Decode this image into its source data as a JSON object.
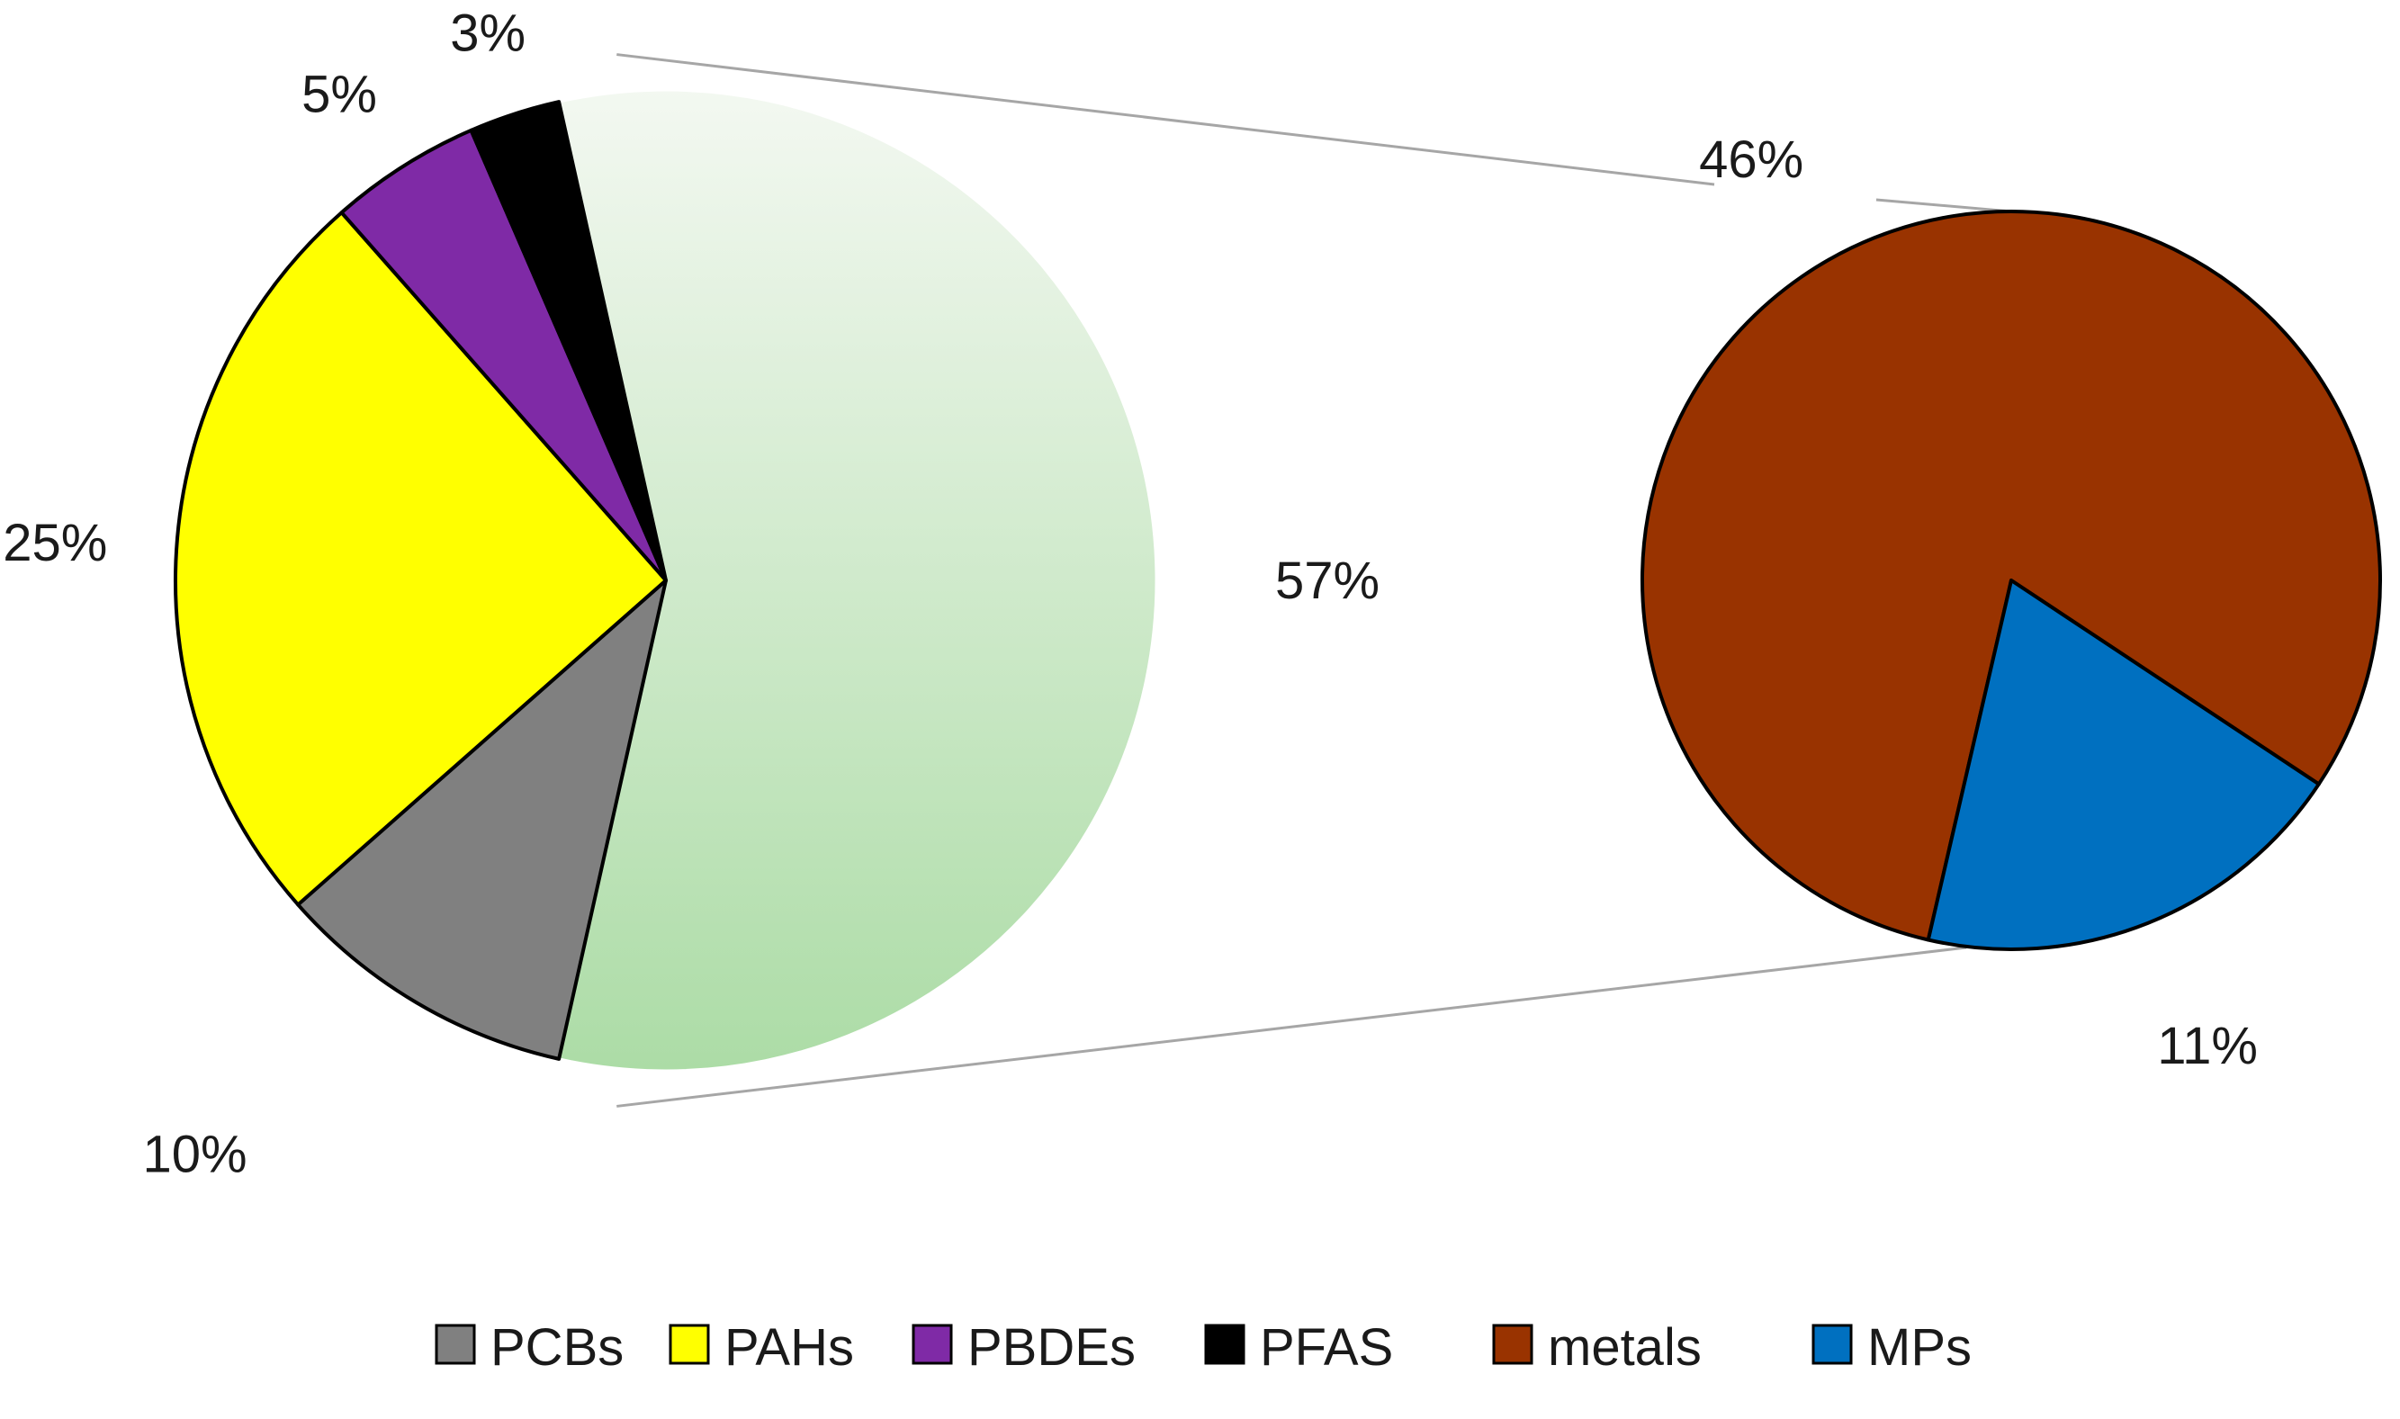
{
  "chart_data": {
    "type": "pie",
    "variant": "pie-of-pie",
    "slices": [
      {
        "name": "PCBs",
        "value": 10,
        "label": "10%",
        "color": "#808080"
      },
      {
        "name": "PAHs",
        "value": 25,
        "label": "25%",
        "color": "#ffff00"
      },
      {
        "name": "PBDEs",
        "value": 5,
        "label": "5%",
        "color": "#7f2aa6"
      },
      {
        "name": "PFAS",
        "value": 3,
        "label": "3%",
        "color": "#000000"
      },
      {
        "name": "other",
        "value": 57,
        "label": "57%",
        "color": "#c8e6c4"
      }
    ],
    "secondary_slices": [
      {
        "name": "metals",
        "value": 46,
        "label": "46%",
        "color": "#993300"
      },
      {
        "name": "MPs",
        "value": 11,
        "label": "11%",
        "color": "#0070c0"
      }
    ],
    "legend": {
      "position": "bottom",
      "items": [
        {
          "name": "PCBs",
          "color": "#808080"
        },
        {
          "name": "PAHs",
          "color": "#ffff00"
        },
        {
          "name": "PBDEs",
          "color": "#7f2aa6"
        },
        {
          "name": "PFAS",
          "color": "#000000"
        },
        {
          "name": "metals",
          "color": "#993300"
        },
        {
          "name": "MPs",
          "color": "#0070c0"
        }
      ]
    }
  }
}
